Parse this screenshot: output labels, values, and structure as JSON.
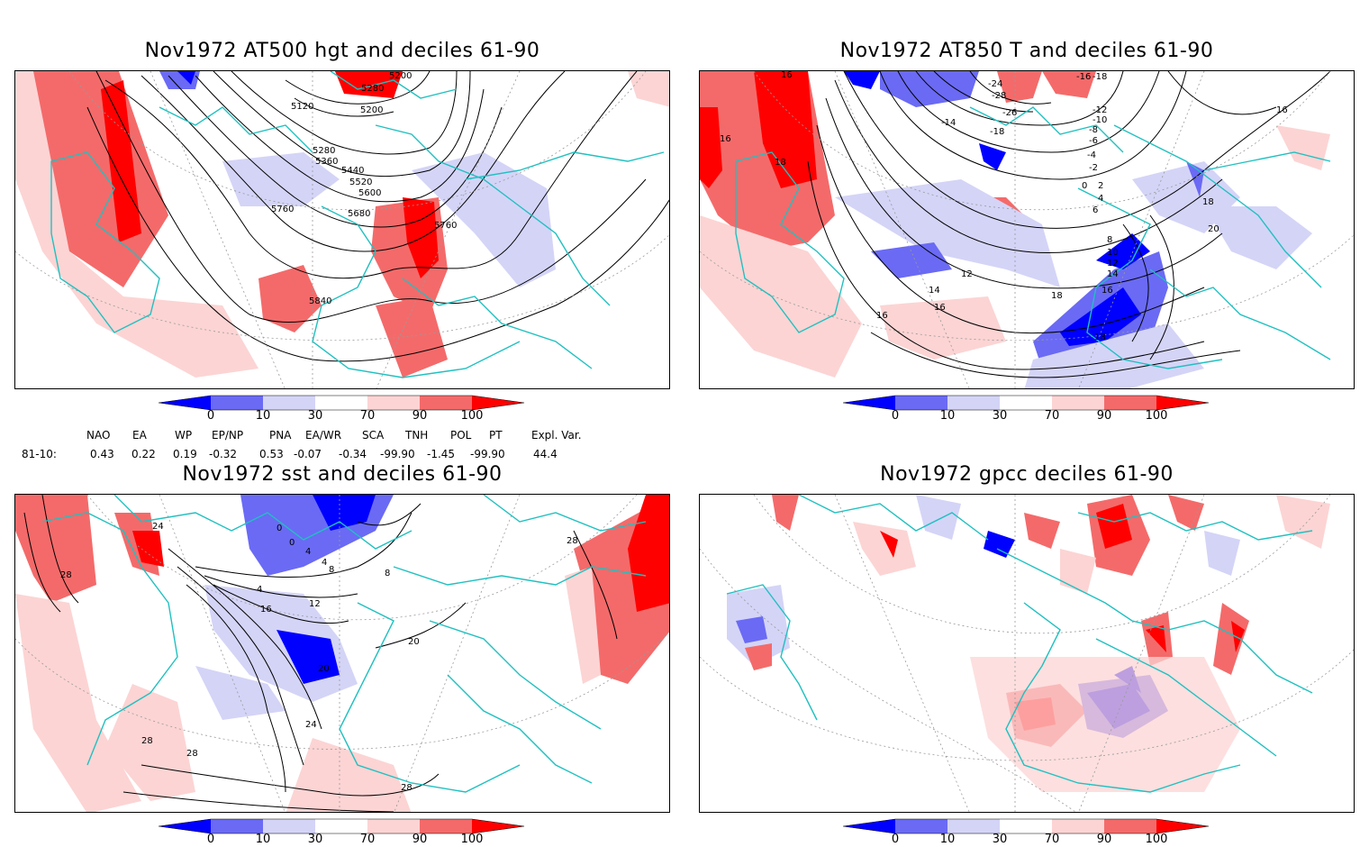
{
  "panels": [
    {
      "title": "Nov1972 AT500 hgt and deciles 61-90",
      "contour_labels": [
        "5200",
        "5280",
        "5120",
        "5200",
        "5280",
        "5360",
        "5440",
        "5520",
        "5600",
        "5680",
        "5760",
        "5760",
        "5840"
      ]
    },
    {
      "title": "Nov1972 AT850 T and deciles 61-90",
      "contour_labels": [
        "-16",
        "-18",
        "-24",
        "-28",
        "-26",
        "-18",
        "-14",
        "-12",
        "-10",
        "-8",
        "-6",
        "-4",
        "-2",
        "0",
        "2",
        "4",
        "6",
        "8",
        "10",
        "12",
        "14",
        "16",
        "18",
        "20",
        "16",
        "16",
        "16",
        "18",
        "14",
        "16",
        "18",
        "16",
        "12",
        "18"
      ]
    },
    {
      "title": "Nov1972 sst and deciles 61-90",
      "contour_labels": [
        "28",
        "24",
        "0",
        "0",
        "4",
        "4",
        "8",
        "4",
        "8",
        "12",
        "16",
        "20",
        "20",
        "24",
        "28",
        "28",
        "28",
        "28"
      ]
    },
    {
      "title": "Nov1972 gpcc deciles 61-90",
      "contour_labels": []
    }
  ],
  "colorbar": {
    "ticks": [
      "0",
      "10",
      "30",
      "70",
      "90",
      "100"
    ],
    "colors": [
      "#0000ff",
      "#6a6af5",
      "#d4d4f7",
      "#ffffff",
      "#fcd4d4",
      "#f46a6a",
      "#ff0000"
    ]
  },
  "indices": {
    "headers": [
      "NAO",
      "EA",
      "WP",
      "EP/NP",
      "PNA",
      "EA/WR",
      "SCA",
      "TNH",
      "POL",
      "PT",
      "Expl. Var."
    ],
    "row_label": "81-10:",
    "values": [
      "0.43",
      "0.22",
      "0.19",
      "-0.32",
      "0.53",
      "-0.07",
      "-0.34",
      "-99.90",
      "-1.45",
      "-99.90",
      "44.4"
    ]
  },
  "colors": {
    "coast": "#20c0c0",
    "grid": "#9a9a9a",
    "contour": "#000000"
  }
}
